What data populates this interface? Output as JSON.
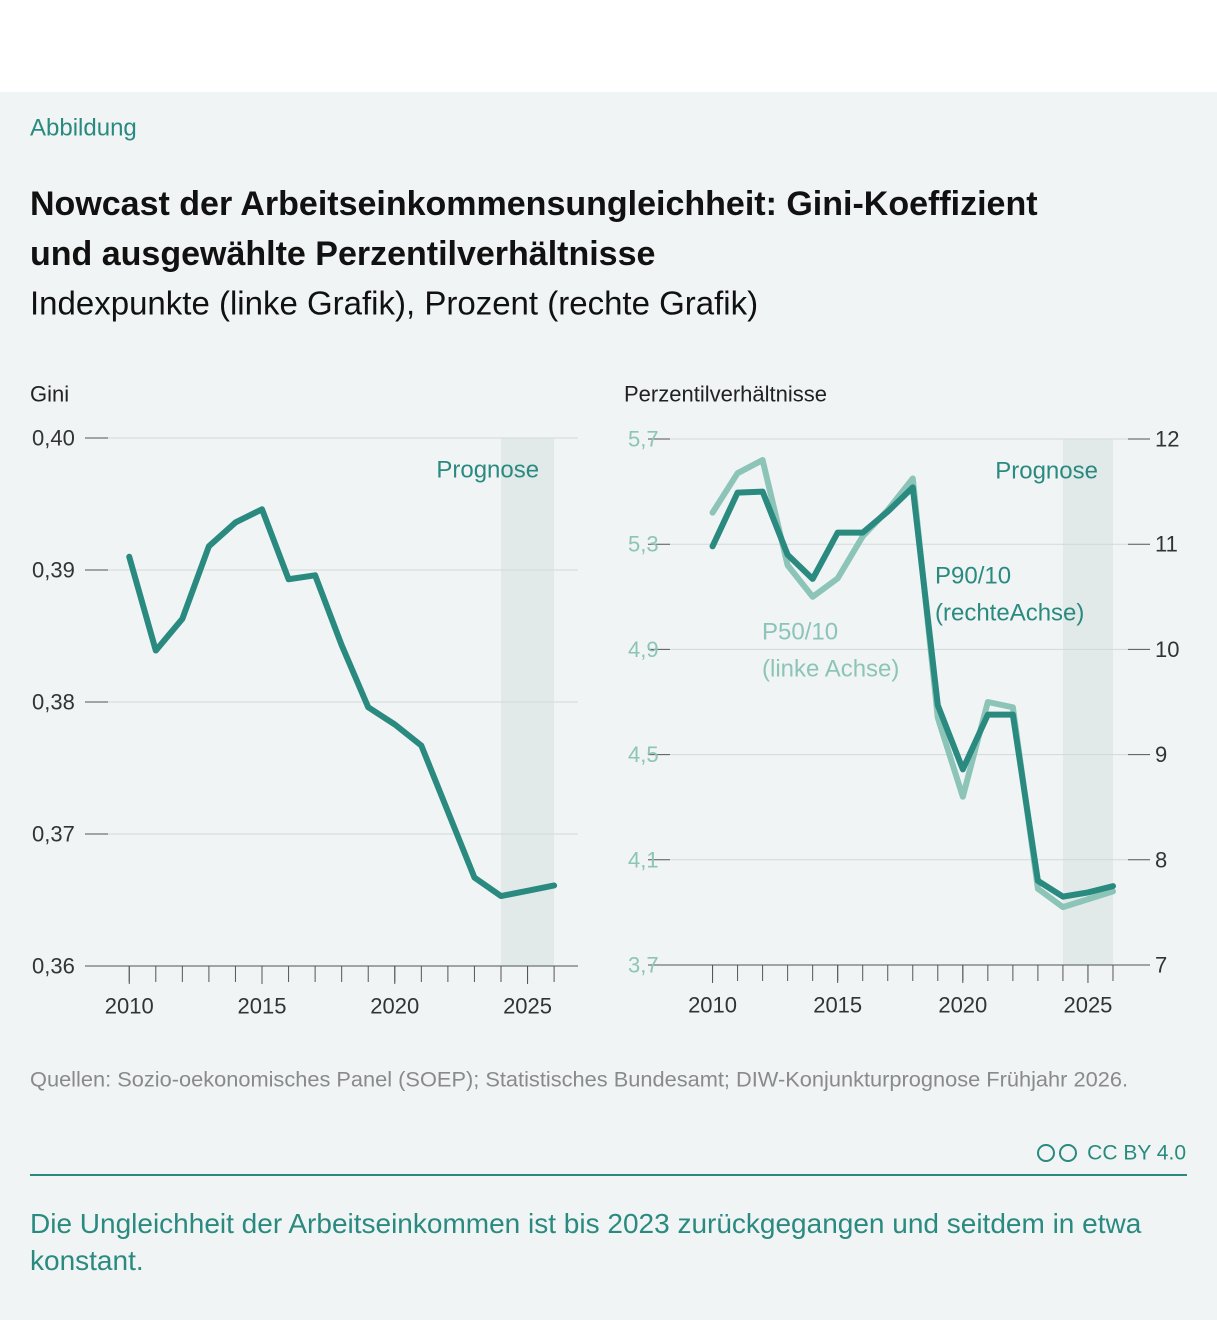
{
  "label": "Abbildung",
  "title": [
    "Nowcast der Arbeitseinkommensungleichheit: Gini-Koeffizient",
    "und ausgewählte Perzentilverhältnisse"
  ],
  "subtitle": "Indexpunkte (linke Grafik), Prozent (rechte Grafik)",
  "chart_data": [
    {
      "type": "line",
      "ylabel": "Gini",
      "color": "#2a8a80",
      "x": [
        2010,
        2011,
        2012,
        2013,
        2014,
        2015,
        2016,
        2017,
        2018,
        2019,
        2020,
        2021,
        2022,
        2023,
        2024,
        2025,
        2026
      ],
      "values": [
        0.391,
        0.3839,
        0.3863,
        0.3918,
        0.3936,
        0.3946,
        0.3893,
        0.3896,
        0.3843,
        0.3796,
        0.3783,
        0.3767,
        0.3717,
        0.3667,
        0.3653,
        0.3657,
        0.3661
      ],
      "xlim": [
        2009.2,
        2026.9
      ],
      "xticks": [
        2010,
        2015,
        2020,
        2025
      ],
      "ylim": [
        0.36,
        0.4
      ],
      "yticks": [
        {
          "value": 0.36,
          "label": "0,36"
        },
        {
          "value": 0.37,
          "label": "0,37"
        },
        {
          "value": 0.38,
          "label": "0,38"
        },
        {
          "value": 0.39,
          "label": "0,39"
        },
        {
          "value": 0.4,
          "label": "0,40"
        }
      ],
      "grid": true,
      "forecast": {
        "start": 2024,
        "end": 2026,
        "label": "Prognose"
      }
    },
    {
      "type": "line",
      "ylabel": "Perzentilverhältnisse",
      "x": [
        2010,
        2011,
        2012,
        2013,
        2014,
        2015,
        2016,
        2017,
        2018,
        2019,
        2020,
        2021,
        2022,
        2023,
        2024,
        2025,
        2026
      ],
      "series": [
        {
          "name": "P50/10",
          "note": "(linke Achse)",
          "color": "#8cc4b8",
          "axis": "y",
          "values": [
            5.42,
            5.57,
            5.62,
            5.22,
            5.1,
            5.17,
            5.33,
            5.43,
            5.55,
            4.64,
            4.34,
            4.7,
            4.68,
            3.99,
            3.92,
            3.95,
            3.98
          ]
        },
        {
          "name": "P90/10",
          "note": "(rechteAchse)",
          "color": "#2a8a80",
          "axis": "y2",
          "values": [
            10.98,
            11.49,
            11.5,
            10.9,
            10.67,
            11.11,
            11.11,
            11.31,
            11.54,
            9.47,
            8.86,
            9.38,
            9.38,
            7.8,
            7.65,
            7.69,
            7.75
          ]
        }
      ],
      "xlim": [
        2008.3,
        2026.6
      ],
      "xticks": [
        2010,
        2015,
        2020,
        2025
      ],
      "ylim": [
        3.7,
        5.7
      ],
      "yticks": [
        {
          "value": 3.7,
          "label": "3,7"
        },
        {
          "value": 4.1,
          "label": "4,1"
        },
        {
          "value": 4.5,
          "label": "4,5"
        },
        {
          "value": 4.9,
          "label": "4,9"
        },
        {
          "value": 5.3,
          "label": "5,3"
        },
        {
          "value": 5.7,
          "label": "5,7"
        }
      ],
      "y2lim": [
        7,
        12
      ],
      "y2ticks": [
        7,
        8,
        9,
        10,
        11,
        12
      ],
      "grid": true,
      "forecast": {
        "start": 2024,
        "end": 2026,
        "label": "Prognose"
      }
    }
  ],
  "source": "Quellen: Sozio-oekonomisches Panel (SOEP); Statistisches Bundesamt; DIW-Konjunkturprognose Frühjahr 2026.",
  "license": "CC BY 4.0",
  "caption": "Die Ungleichheit der Arbeitseinkommen ist bis 2023 zurückgegangen und seitdem in etwa konstant."
}
